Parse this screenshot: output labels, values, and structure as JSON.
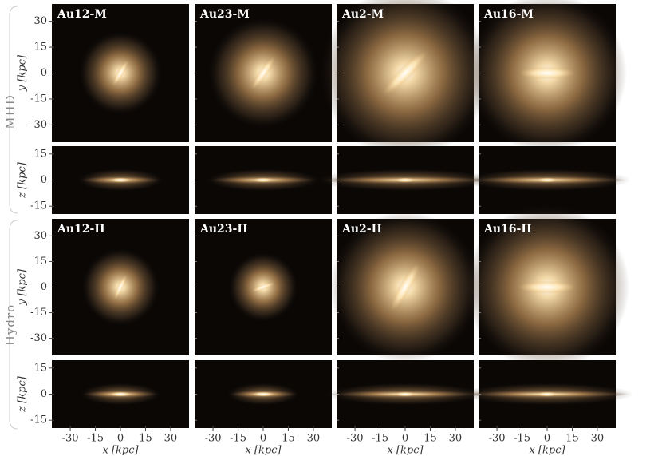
{
  "figure": {
    "rows": [
      {
        "label": "MHD",
        "panels": [
          "Au12-M",
          "Au23-M",
          "Au2-M",
          "Au16-M"
        ]
      },
      {
        "label": "Hydro",
        "panels": [
          "Au12-H",
          "Au23-H",
          "Au2-H",
          "Au16-H"
        ]
      }
    ],
    "x_axis": {
      "label": "x [kpc]",
      "lim": [
        -41,
        41
      ],
      "ticks": [
        -30,
        -15,
        0,
        15,
        30
      ]
    },
    "face_on_y_axis": {
      "label": "y [kpc]",
      "lim": [
        -40,
        40
      ],
      "ticks": [
        30,
        15,
        0,
        -15,
        -30
      ]
    },
    "edge_on_y_axis": {
      "label": "z [kpc]",
      "lim": [
        -19.5,
        19.5
      ],
      "ticks": [
        15,
        0,
        -15
      ]
    }
  }
}
